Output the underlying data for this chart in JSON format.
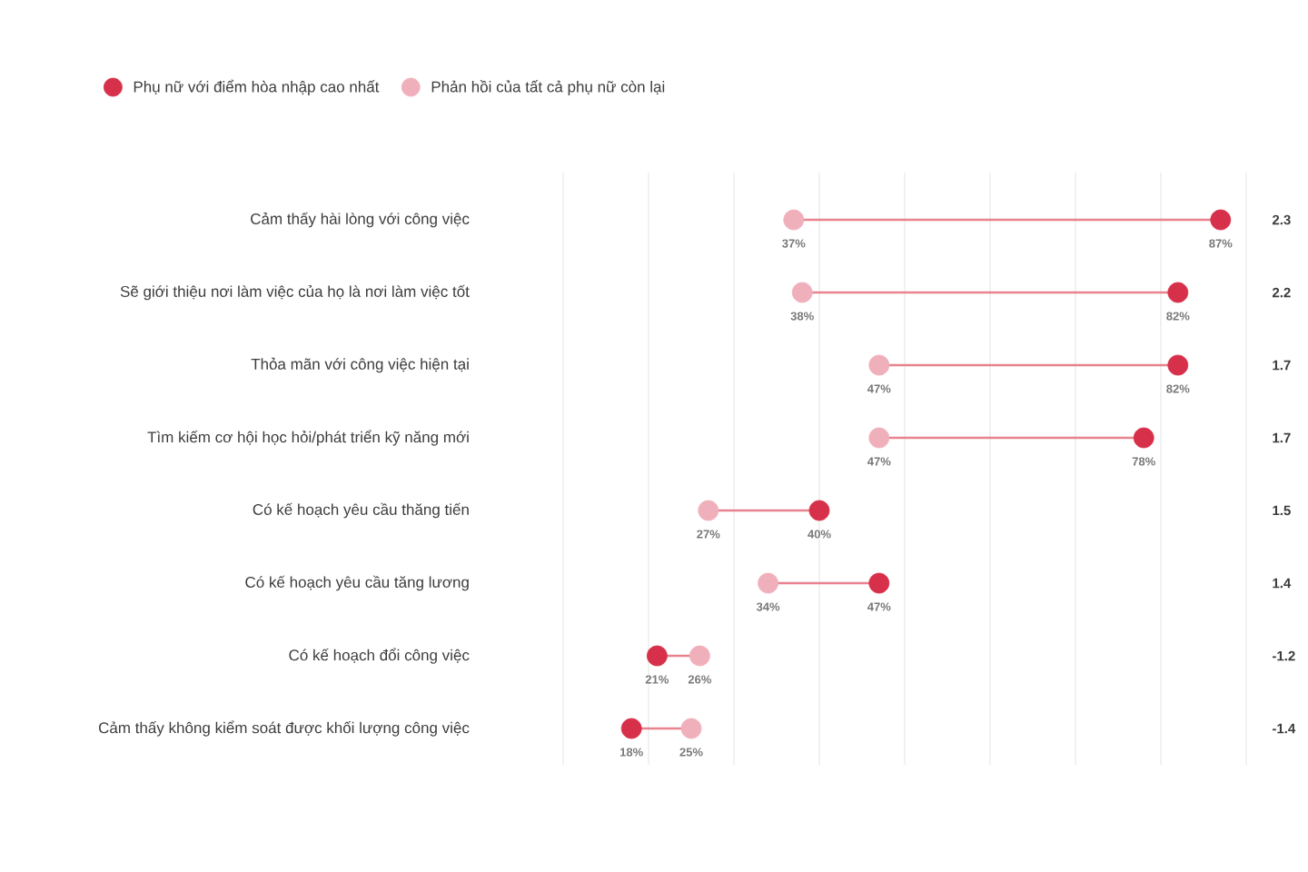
{
  "chart_data": {
    "type": "scatter",
    "categories": [
      "Cảm thấy hài lòng với công việc",
      "Sẽ giới thiệu nơi làm việc của họ là nơi làm việc tốt",
      "Thỏa mãn với công việc hiện tại",
      "Tìm kiếm cơ hội học hỏi/phát triển kỹ năng mới",
      "Có kế hoạch yêu cầu thăng tiến",
      "Có kế hoạch yêu cầu tăng lương",
      "Có kế hoạch đổi công việc",
      "Cảm thấy không kiểm soát được khối lượng công việc"
    ],
    "series": [
      {
        "name": "Phụ nữ với điểm hòa nhập cao nhất",
        "color": "#d7304a",
        "values": [
          87,
          82,
          82,
          78,
          40,
          47,
          21,
          18
        ],
        "value_labels": [
          "87%",
          "82%",
          "82%",
          "78%",
          "40%",
          "47%",
          "21%",
          "18%"
        ]
      },
      {
        "name": "Phản hồi của tất cả phụ nữ còn lại",
        "color": "#f0b0bb",
        "values": [
          37,
          38,
          47,
          47,
          27,
          34,
          26,
          25
        ],
        "value_labels": [
          "37%",
          "38%",
          "47%",
          "47%",
          "27%",
          "34%",
          "26%",
          "25%"
        ]
      }
    ],
    "xlim": [
      10,
      90
    ],
    "xticks": [
      {
        "value": 10,
        "label": null
      },
      {
        "value": 20,
        "label": null
      },
      {
        "value": 30,
        "label": null
      },
      {
        "value": 40,
        "label": null
      },
      {
        "value": 50,
        "label": null
      },
      {
        "value": 60,
        "label": null
      },
      {
        "value": 70,
        "label": null
      },
      {
        "value": 80,
        "label": null
      },
      {
        "value": 90,
        "label": null
      }
    ],
    "orientation": "horizontal",
    "tick_labels": "y",
    "grid": "x",
    "legend": "top left",
    "marker": "circle",
    "annotations": [
      "2.3",
      "2.2",
      "1.7",
      "1.7",
      "1.5",
      "1.4",
      "-1.2",
      "-1.4"
    ]
  }
}
